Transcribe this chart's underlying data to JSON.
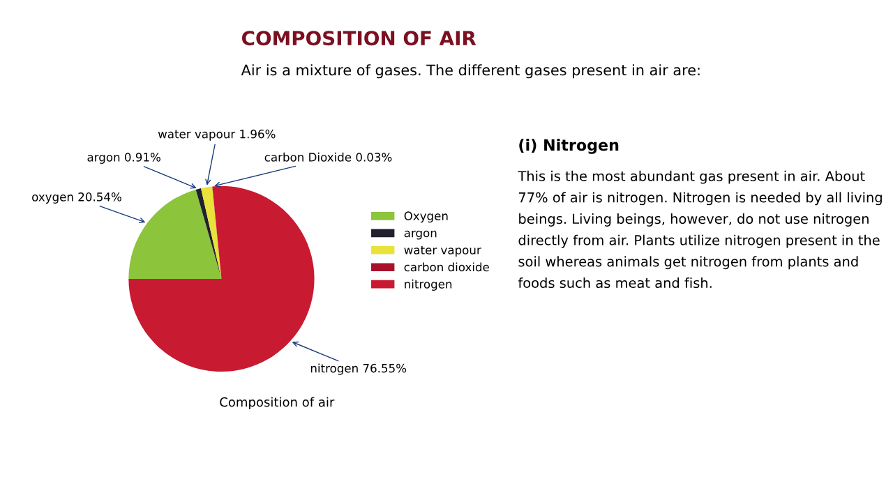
{
  "chart_data": {
    "type": "pie",
    "title": "COMPOSITION OF AIR",
    "subtitle": "Air is a mixture of gases. The different gases present in air are:",
    "categories": [
      "Oxygen",
      "argon",
      "water vapour",
      "carbon dioxide",
      "nitrogen"
    ],
    "values": [
      20.54,
      0.91,
      1.96,
      0.03,
      76.55
    ],
    "value_labels": [
      "oxygen 20.54%",
      "argon 0.91%",
      "water vapour 1.96%",
      "carbon Dioxide 0.03%",
      "nitrogen 76.55%"
    ],
    "colors": [
      "#8cc43c",
      "#20202e",
      "#e8e23a",
      "#a8102c",
      "#c81a30"
    ],
    "legend": "right",
    "annotations": [
      "Composition of air",
      "(i) Nitrogen",
      "This is the most abundant gas present in air. About 77% of air is nitrogen. Nitrogen is needed by all living beings. Living beings, however, do not use nitrogen directly from air. Plants utilize nitrogen present in the soil whereas animals get nitrogen from plants and foods such as meat and fish."
    ]
  }
}
